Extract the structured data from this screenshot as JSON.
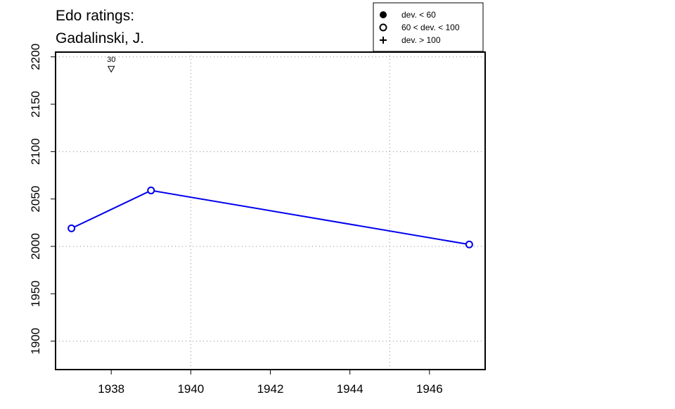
{
  "chart_data": {
    "type": "line",
    "title": "Edo ratings:",
    "subtitle": "Gadalinski, J.",
    "xlabel": "",
    "ylabel": "",
    "xlim": [
      1936.6,
      1947.4
    ],
    "ylim": [
      1870,
      2205
    ],
    "x_ticks": [
      1938,
      1940,
      1942,
      1944,
      1946
    ],
    "y_ticks": [
      1900,
      1950,
      2000,
      2050,
      2100,
      2150,
      2200
    ],
    "x_grid": [
      1940,
      1945
    ],
    "y_grid": [
      1900,
      2000,
      2100,
      2200
    ],
    "grid": true,
    "series": [
      {
        "color": "#0000ee",
        "points": [
          {
            "x": 1937,
            "y": 2019,
            "marker": "open-circle"
          },
          {
            "x": 1939,
            "y": 2059,
            "marker": "open-circle"
          },
          {
            "x": 1947,
            "y": 2002,
            "marker": "open-circle"
          }
        ]
      }
    ],
    "annotations": [
      {
        "x": 1938,
        "y": 2187,
        "marker": "down-triangle",
        "label": "30"
      }
    ],
    "legend": {
      "position": "top-right",
      "entries": [
        {
          "marker": "filled-circle",
          "label": "dev. < 60"
        },
        {
          "marker": "open-circle",
          "label": "60 < dev. < 100"
        },
        {
          "marker": "plus",
          "label": "dev. > 100"
        }
      ]
    }
  }
}
